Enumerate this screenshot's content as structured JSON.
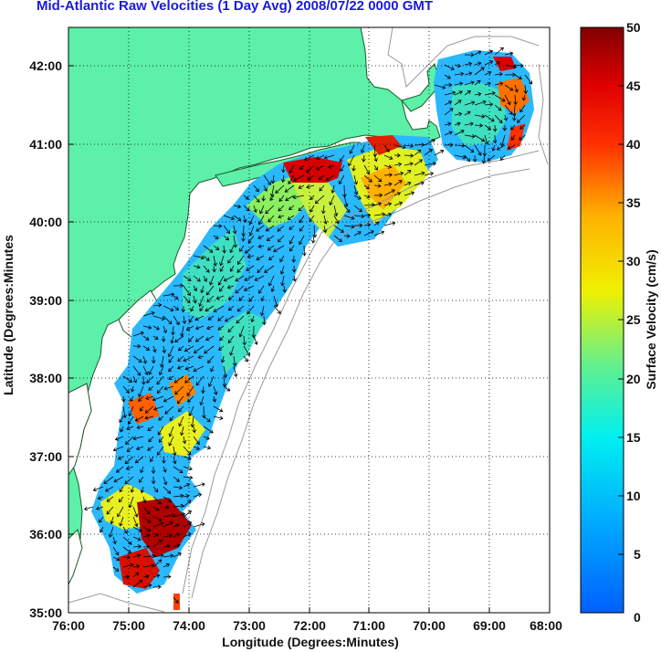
{
  "title": "Mid-Atlantic Raw Velocities (1 Day Avg) 2008/07/22 0000 GMT",
  "xlabel": "Longitude (Degrees:Minutes)",
  "ylabel": "Latitude (Degrees:Minutes",
  "x_ticks": [
    "76:00",
    "75:00",
    "74:00",
    "73:00",
    "72:00",
    "71:00",
    "70:00",
    "69:00",
    "68:00"
  ],
  "y_ticks": [
    "42:00",
    "41:00",
    "40:00",
    "39:00",
    "38:00",
    "37:00",
    "36:00",
    "35:00"
  ],
  "colorbar": {
    "label": "Surface Velocity (cm/s)",
    "ticks": [
      "50",
      "45",
      "40",
      "35",
      "30",
      "25",
      "20",
      "15",
      "10",
      "5",
      "0"
    ]
  },
  "chart_data": {
    "type": "heatmap",
    "xlim": [
      -76,
      -68
    ],
    "ylim": [
      35,
      42.5
    ],
    "color_range_cm_s": [
      0,
      50
    ],
    "grid": true,
    "colormap": "jet",
    "colors": {
      "land": "#5cf0a8",
      "coast": "#1a5a2a",
      "bathymetry": "#9a9a9a"
    }
  }
}
